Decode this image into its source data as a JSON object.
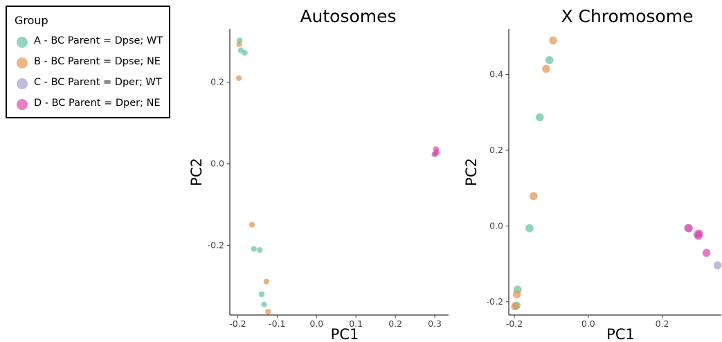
{
  "legend": {
    "title": "Group",
    "items": [
      {
        "label": "A - BC Parent = Dpse; WT",
        "color": "#66c2a5"
      },
      {
        "label": "B - BC Parent = Dpse; NE",
        "color": "#e49552"
      },
      {
        "label": "C - BC Parent = Dper; WT",
        "color": "#a59fcf"
      },
      {
        "label": "D - BC Parent = Dper; NE",
        "color": "#e04aa7"
      }
    ]
  },
  "chart_data": [
    {
      "type": "scatter",
      "title": "Autosomes",
      "xlabel": "PC1",
      "ylabel": "PC2",
      "xlim": [
        -0.22,
        0.335
      ],
      "ylim": [
        -0.37,
        0.33
      ],
      "xticks": [
        "-0.2",
        "-0.1",
        "0.0",
        "0.1",
        "0.2",
        "0.3"
      ],
      "xtick_values": [
        -0.2,
        -0.1,
        0.0,
        0.1,
        0.2,
        0.3
      ],
      "yticks": [
        "-0.2",
        "0.0",
        "0.2"
      ],
      "ytick_values": [
        -0.2,
        0.0,
        0.2
      ],
      "series": [
        {
          "name": "A - BC Parent = Dpse; WT",
          "color": "#66c2a5",
          "points": [
            [
              -0.195,
              0.302
            ],
            [
              -0.192,
              0.278
            ],
            [
              -0.182,
              0.272
            ],
            [
              -0.159,
              -0.208
            ],
            [
              -0.144,
              -0.211
            ],
            [
              -0.139,
              -0.319
            ],
            [
              -0.133,
              -0.344
            ]
          ]
        },
        {
          "name": "B - BC Parent = Dpse; NE",
          "color": "#e49552",
          "points": [
            [
              -0.196,
              0.293
            ],
            [
              -0.197,
              0.21
            ],
            [
              -0.164,
              -0.149
            ],
            [
              -0.127,
              -0.288
            ],
            [
              -0.123,
              -0.362
            ]
          ]
        },
        {
          "name": "C - BC Parent = Dper; WT",
          "color": "#a59fcf",
          "points": [
            [
              0.299,
              0.023
            ]
          ]
        },
        {
          "name": "D - BC Parent = Dper; NE",
          "color": "#e04aa7",
          "points": [
            [
              0.303,
              0.036
            ],
            [
              0.305,
              0.028
            ],
            [
              0.301,
              0.025
            ]
          ]
        }
      ]
    },
    {
      "type": "scatter",
      "title": "X Chromosome",
      "xlabel": "PC1",
      "ylabel": "PC2",
      "xlim": [
        -0.215,
        0.36
      ],
      "ylim": [
        -0.235,
        0.52
      ],
      "xticks": [
        "-0.2",
        "0.0",
        "0.2"
      ],
      "xtick_values": [
        -0.2,
        0.0,
        0.2
      ],
      "yticks": [
        "-0.2",
        "0.0",
        "0.2",
        "0.4"
      ],
      "ytick_values": [
        -0.2,
        0.0,
        0.2,
        0.4
      ],
      "series": [
        {
          "name": "A - BC Parent = Dpse; WT",
          "color": "#66c2a5",
          "points": [
            [
              -0.105,
              0.438
            ],
            [
              -0.131,
              0.287
            ],
            [
              -0.159,
              -0.006
            ],
            [
              -0.191,
              -0.168
            ],
            [
              -0.194,
              -0.21
            ]
          ]
        },
        {
          "name": "B - BC Parent = Dpse; NE",
          "color": "#e49552",
          "points": [
            [
              -0.095,
              0.49
            ],
            [
              -0.114,
              0.415
            ],
            [
              -0.148,
              0.079
            ],
            [
              -0.193,
              -0.18
            ],
            [
              -0.198,
              -0.212
            ]
          ]
        },
        {
          "name": "C - BC Parent = Dper; WT",
          "color": "#a59fcf",
          "points": [
            [
              0.27,
              -0.005
            ],
            [
              0.35,
              -0.104
            ],
            [
              0.295,
              -0.022
            ]
          ]
        },
        {
          "name": "D - BC Parent = Dper; NE",
          "color": "#e04aa7",
          "points": [
            [
              0.298,
              -0.026
            ],
            [
              0.3,
              -0.02
            ],
            [
              0.32,
              -0.071
            ],
            [
              0.272,
              -0.006
            ]
          ]
        }
      ]
    }
  ]
}
